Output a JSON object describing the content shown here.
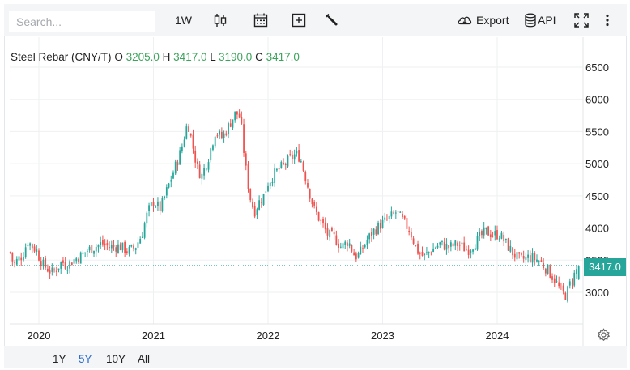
{
  "toolbar": {
    "search_placeholder": "Search...",
    "interval": "1W",
    "export_label": "Export",
    "api_label": "API"
  },
  "legend": {
    "name": "Steel Rebar (CNY/T)",
    "o_label": "O",
    "o_value": "3205.0",
    "h_label": "H",
    "h_value": "3417.0",
    "l_label": "L",
    "l_value": "3190.0",
    "c_label": "C",
    "c_value": "3417.0"
  },
  "ranges": [
    "1Y",
    "5Y",
    "10Y",
    "All"
  ],
  "active_range": "5Y",
  "last_price_label": "3417.0",
  "colors": {
    "up": "#26a69a",
    "down": "#ef5350",
    "active_range": "#2d6ecf",
    "legend_value": "#3aa55a"
  },
  "chart_data": {
    "type": "candlestick",
    "title": "",
    "y_ticks": [
      3000,
      3500,
      4000,
      4500,
      5000,
      5500,
      6000,
      6500
    ],
    "y_tick_labels": [
      "3000",
      "3500",
      "4000",
      "4500",
      "5000",
      "5500",
      "6000",
      "6500"
    ],
    "x_tick_labels": [
      "2020",
      "2021",
      "2022",
      "2023",
      "2024"
    ],
    "x_tick_years": [
      2020,
      2021,
      2022,
      2023,
      2024
    ],
    "ylim": [
      2600,
      6800
    ],
    "xlim_years": [
      2019.72,
      2024.86
    ],
    "last_price": 3417.0,
    "grid": true,
    "weekly_close_approx": [
      [
        2019.75,
        3620
      ],
      [
        2019.78,
        3420
      ],
      [
        2019.82,
        3520
      ],
      [
        2019.86,
        3580
      ],
      [
        2019.9,
        3800
      ],
      [
        2019.94,
        3720
      ],
      [
        2019.98,
        3650
      ],
      [
        2020.0,
        3560
      ],
      [
        2020.04,
        3420
      ],
      [
        2020.08,
        3360
      ],
      [
        2020.12,
        3300
      ],
      [
        2020.16,
        3380
      ],
      [
        2020.2,
        3480
      ],
      [
        2020.24,
        3420
      ],
      [
        2020.3,
        3500
      ],
      [
        2020.36,
        3560
      ],
      [
        2020.42,
        3650
      ],
      [
        2020.48,
        3700
      ],
      [
        2020.55,
        3760
      ],
      [
        2020.62,
        3700
      ],
      [
        2020.7,
        3720
      ],
      [
        2020.78,
        3640
      ],
      [
        2020.84,
        3700
      ],
      [
        2020.9,
        3900
      ],
      [
        2020.95,
        4250
      ],
      [
        2021.0,
        4400
      ],
      [
        2021.06,
        4300
      ],
      [
        2021.12,
        4600
      ],
      [
        2021.18,
        4900
      ],
      [
        2021.24,
        5200
      ],
      [
        2021.3,
        5650
      ],
      [
        2021.34,
        5300
      ],
      [
        2021.38,
        4950
      ],
      [
        2021.42,
        4800
      ],
      [
        2021.48,
        5100
      ],
      [
        2021.54,
        5500
      ],
      [
        2021.6,
        5400
      ],
      [
        2021.66,
        5600
      ],
      [
        2021.72,
        5800
      ],
      [
        2021.76,
        5700
      ],
      [
        2021.8,
        5000
      ],
      [
        2021.84,
        4500
      ],
      [
        2021.88,
        4250
      ],
      [
        2021.92,
        4400
      ],
      [
        2021.96,
        4500
      ],
      [
        2022.0,
        4700
      ],
      [
        2022.06,
        4850
      ],
      [
        2022.12,
        4950
      ],
      [
        2022.18,
        5050
      ],
      [
        2022.24,
        5150
      ],
      [
        2022.28,
        5100
      ],
      [
        2022.34,
        4700
      ],
      [
        2022.4,
        4300
      ],
      [
        2022.46,
        4100
      ],
      [
        2022.52,
        3900
      ],
      [
        2022.58,
        3850
      ],
      [
        2022.64,
        3700
      ],
      [
        2022.7,
        3800
      ],
      [
        2022.76,
        3550
      ],
      [
        2022.8,
        3600
      ],
      [
        2022.86,
        3800
      ],
      [
        2022.92,
        3950
      ],
      [
        2022.98,
        4050
      ],
      [
        2023.06,
        4150
      ],
      [
        2023.12,
        4250
      ],
      [
        2023.18,
        4100
      ],
      [
        2023.24,
        3950
      ],
      [
        2023.3,
        3650
      ],
      [
        2023.36,
        3550
      ],
      [
        2023.42,
        3650
      ],
      [
        2023.5,
        3750
      ],
      [
        2023.58,
        3700
      ],
      [
        2023.66,
        3750
      ],
      [
        2023.74,
        3650
      ],
      [
        2023.82,
        3800
      ],
      [
        2023.9,
        3950
      ],
      [
        2023.96,
        3900
      ],
      [
        2024.02,
        3900
      ],
      [
        2024.08,
        3750
      ],
      [
        2024.14,
        3600
      ],
      [
        2024.2,
        3500
      ],
      [
        2024.28,
        3550
      ],
      [
        2024.36,
        3500
      ],
      [
        2024.44,
        3350
      ],
      [
        2024.5,
        3200
      ],
      [
        2024.56,
        3000
      ],
      [
        2024.6,
        2950
      ],
      [
        2024.64,
        3150
      ],
      [
        2024.68,
        3300
      ],
      [
        2024.71,
        3417
      ]
    ]
  }
}
